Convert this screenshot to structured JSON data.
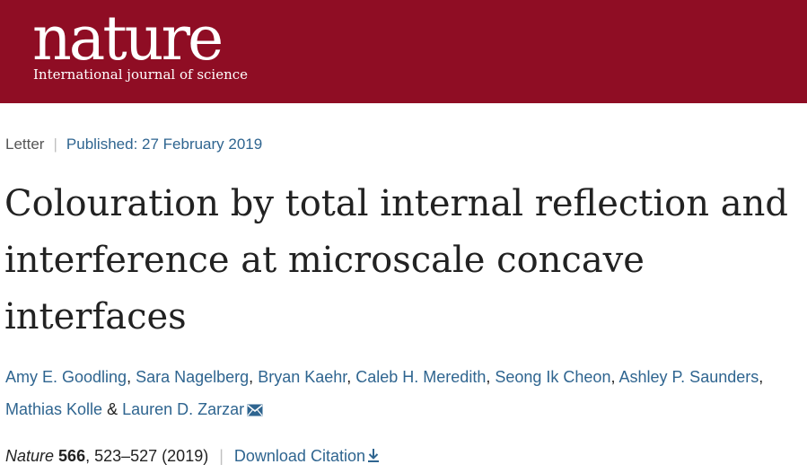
{
  "header": {
    "logo_text": "nature",
    "tagline": "International journal of science"
  },
  "article_meta": {
    "type": "Letter",
    "separator": "|",
    "published": "Published: 27 February 2019"
  },
  "title": "Colouration by total internal reflection and interference at microscale concave interfaces",
  "authors": [
    {
      "name": "Amy E. Goodling",
      "after": ", "
    },
    {
      "name": "Sara Nagelberg",
      "after": ", "
    },
    {
      "name": "Bryan Kaehr",
      "after": ", "
    },
    {
      "name": "Caleb H. Meredith",
      "after": ", "
    },
    {
      "name": "Seong Ik Cheon",
      "after": ", "
    },
    {
      "name": "Ashley P. Saunders",
      "after": ", "
    },
    {
      "name": "Mathias Kolle",
      "after": " & "
    },
    {
      "name": "Lauren D. Zarzar",
      "after": ""
    }
  ],
  "citation": {
    "journal": "Nature",
    "volume": "566",
    "pages": ", 523–527 (2019)",
    "separator": "|",
    "download_label": "Download Citation"
  },
  "icons": {
    "corresponding_author": "mail-icon",
    "download": "download-arrow-icon"
  },
  "colors": {
    "header_bg": "#8f0d24",
    "link": "#2f6590",
    "text": "#222222"
  }
}
